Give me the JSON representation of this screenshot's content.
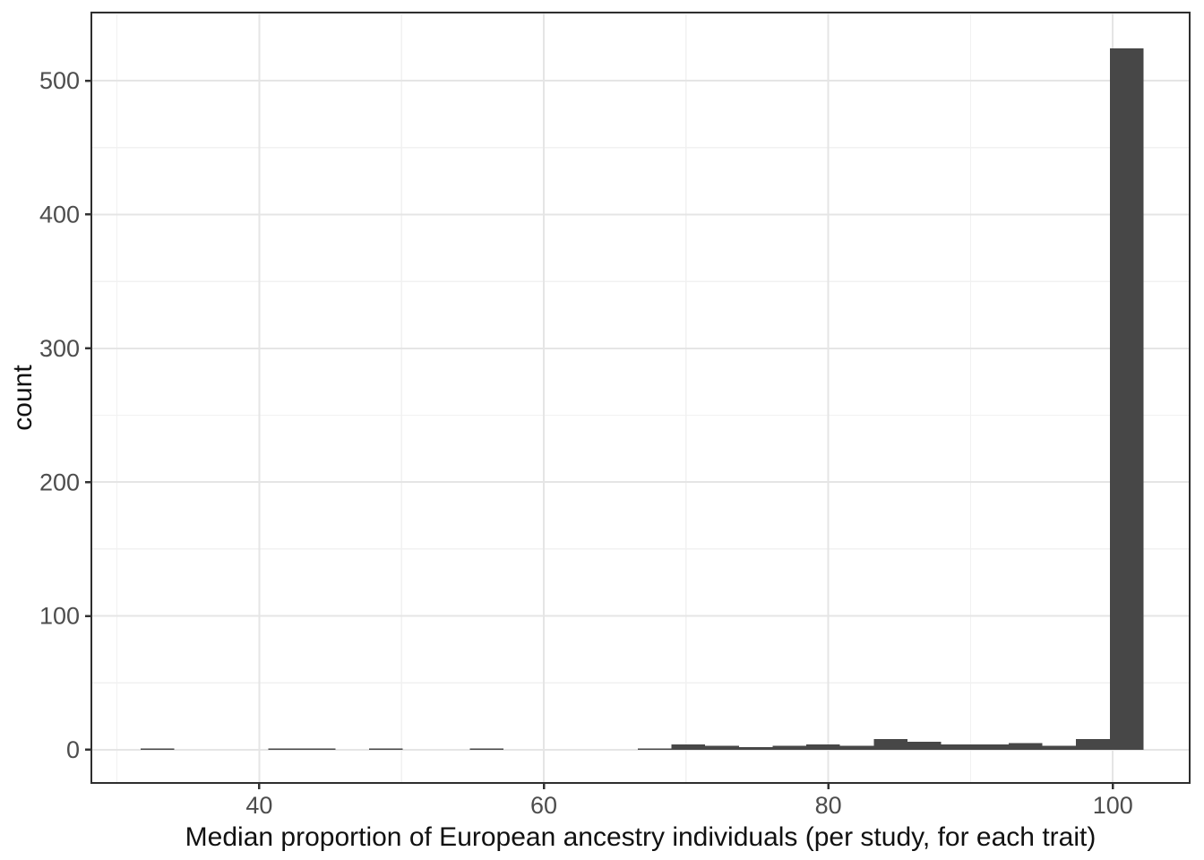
{
  "figure": {
    "background": "#ffffff",
    "bar_color": "#474747",
    "panel_border_color": "#2e2e2e",
    "grid_major_color": "#e5e5e5",
    "grid_minor_color": "#f1f1f1",
    "tick_mark_color": "#333333",
    "tick_label_color": "#4d4d4d",
    "axis_title_color": "#111111"
  },
  "chart_data": {
    "type": "bar",
    "subtype": "histogram",
    "title": "",
    "xlabel": "Median proportion of European ancestry individuals (per study, for each trait)",
    "ylabel": "count",
    "grid": true,
    "legend": "none",
    "xlim": [
      28.2,
      105.4
    ],
    "ylim": [
      -24.8,
      550.9
    ],
    "x_ticks": [
      40,
      60,
      80,
      100
    ],
    "x_minor_ticks": [
      30,
      50,
      70,
      90
    ],
    "y_ticks": [
      0,
      100,
      200,
      300,
      400,
      500
    ],
    "y_minor_ticks": [
      50,
      150,
      250,
      350,
      450,
      550
    ],
    "binwidth": 2.37,
    "bins": [
      {
        "x": 32.85,
        "count": 1
      },
      {
        "x": 41.81,
        "count": 1
      },
      {
        "x": 44.18,
        "count": 1
      },
      {
        "x": 48.9,
        "count": 1
      },
      {
        "x": 55.98,
        "count": 1
      },
      {
        "x": 67.79,
        "count": 1
      },
      {
        "x": 70.16,
        "count": 4
      },
      {
        "x": 72.53,
        "count": 3
      },
      {
        "x": 74.9,
        "count": 2
      },
      {
        "x": 77.27,
        "count": 3
      },
      {
        "x": 79.64,
        "count": 4
      },
      {
        "x": 82.01,
        "count": 3
      },
      {
        "x": 84.38,
        "count": 8
      },
      {
        "x": 86.75,
        "count": 6
      },
      {
        "x": 89.12,
        "count": 4
      },
      {
        "x": 91.49,
        "count": 4
      },
      {
        "x": 93.86,
        "count": 5
      },
      {
        "x": 96.23,
        "count": 3
      },
      {
        "x": 98.6,
        "count": 8
      },
      {
        "x": 100.97,
        "count": 524
      }
    ]
  }
}
